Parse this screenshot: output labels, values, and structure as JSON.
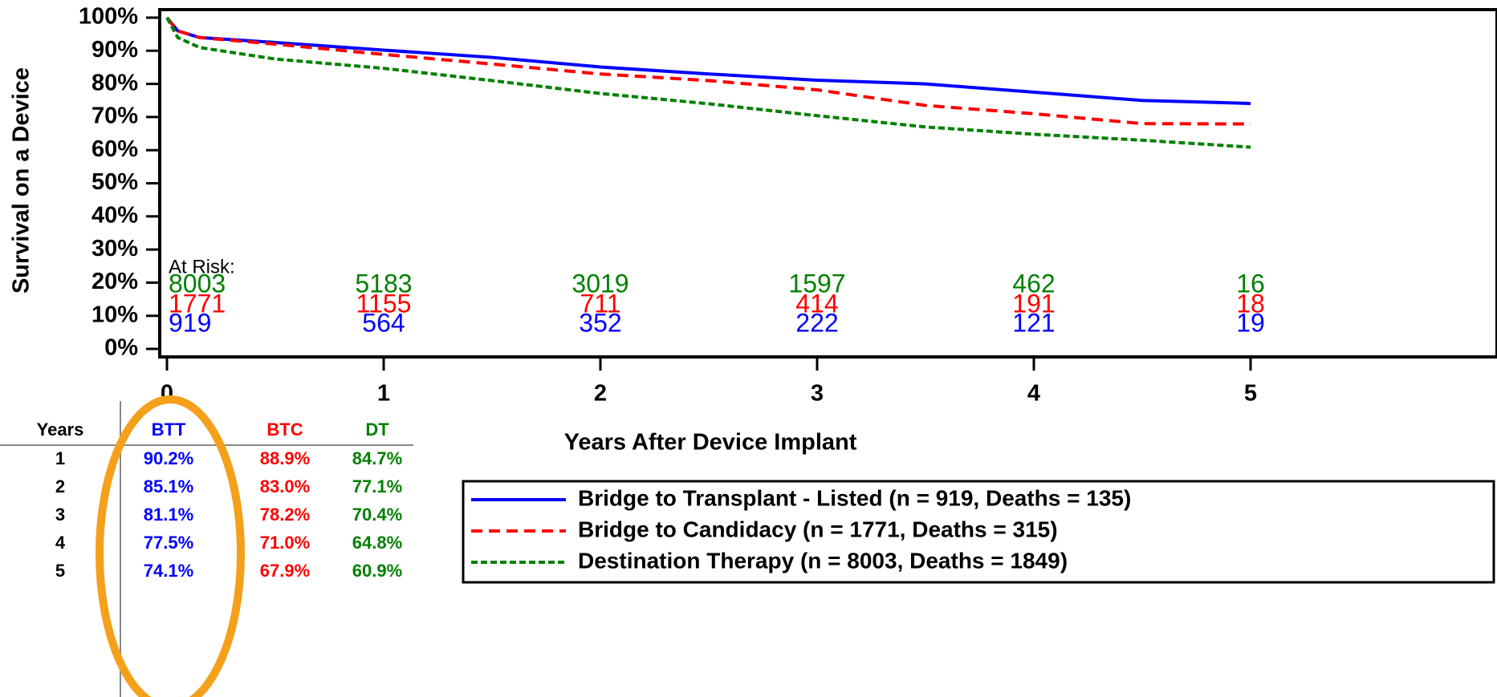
{
  "chart_data": {
    "type": "line",
    "y_label": "Survival on a Device",
    "x_label": "Years After Device Implant",
    "xlim": [
      0,
      5
    ],
    "xticks": [
      0,
      1,
      2,
      3,
      4,
      5
    ],
    "ylim": [
      0,
      100
    ],
    "yticks": [
      {
        "value": 0,
        "label": "0%"
      },
      {
        "value": 10,
        "label": "10%"
      },
      {
        "value": 20,
        "label": "20%"
      },
      {
        "value": 30,
        "label": "30%"
      },
      {
        "value": 40,
        "label": "40%"
      },
      {
        "value": 50,
        "label": "50%"
      },
      {
        "value": 60,
        "label": "60%"
      },
      {
        "value": 70,
        "label": "70%"
      },
      {
        "value": 80,
        "label": "80%"
      },
      {
        "value": 90,
        "label": "90%"
      },
      {
        "value": 100,
        "label": "100%"
      }
    ],
    "x": [
      0,
      0.05,
      0.15,
      0.5,
      1,
      1.5,
      2,
      2.5,
      3,
      3.5,
      4,
      4.5,
      5
    ],
    "series": [
      {
        "name": "Bridge to Transplant - Listed (n = 919, Deaths = 135)",
        "color": "#0000ff",
        "dash": "none",
        "values": [
          100,
          96,
          94,
          92.5,
          90.2,
          88,
          85.1,
          83,
          81.1,
          80,
          77.5,
          75,
          74.1
        ],
        "at_risk": [
          919,
          564,
          352,
          222,
          121,
          19
        ]
      },
      {
        "name": "Bridge to Candidacy (n = 1771, Deaths = 315)",
        "color": "#ff0000",
        "dash": "14 8",
        "values": [
          100,
          96,
          94,
          92,
          88.9,
          86,
          83,
          81,
          78.2,
          73.5,
          71,
          68,
          67.9
        ],
        "at_risk": [
          1771,
          1155,
          711,
          414,
          191,
          18
        ]
      },
      {
        "name": "Destination Therapy (n = 8003, Deaths = 1849)",
        "color": "#008000",
        "dash": "8 4",
        "values": [
          100,
          94,
          91,
          87.5,
          84.7,
          81,
          77.1,
          74,
          70.4,
          67,
          64.8,
          63,
          60.9
        ],
        "at_risk": [
          8003,
          5183,
          3019,
          1597,
          462,
          16
        ]
      }
    ],
    "at_risk_label": "At Risk:"
  },
  "table": {
    "columns": [
      "Years",
      "BTT",
      "BTC",
      "DT"
    ],
    "rows": [
      [
        "1",
        "90.2%",
        "88.9%",
        "84.7%"
      ],
      [
        "2",
        "85.1%",
        "83.0%",
        "77.1%"
      ],
      [
        "3",
        "81.1%",
        "78.2%",
        "70.4%"
      ],
      [
        "4",
        "77.5%",
        "71.0%",
        "64.8%"
      ],
      [
        "5",
        "74.1%",
        "67.9%",
        "60.9%"
      ]
    ]
  }
}
